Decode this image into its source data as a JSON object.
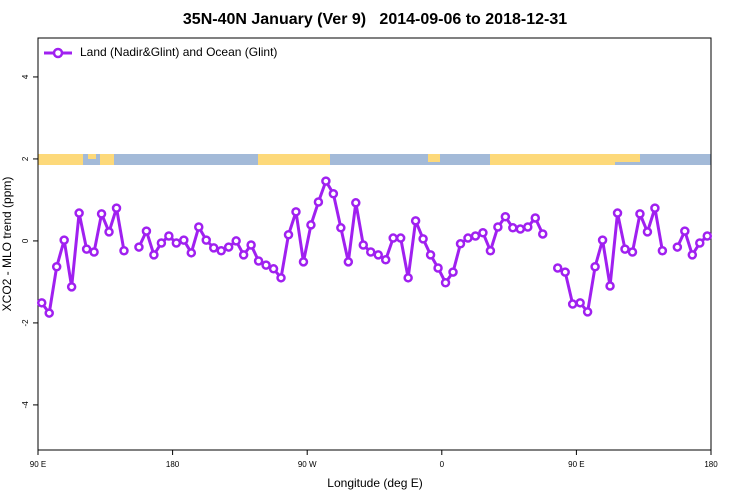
{
  "chart_data": {
    "type": "line",
    "title": "35N-40N January (Ver 9)   2014-09-06 to 2018-12-31",
    "x_label": "Longitude (deg E)",
    "y_label": "XCO2 - MLO trend (ppm)",
    "x": [
      92.5,
      97.5,
      102.5,
      107.5,
      112.5,
      117.5,
      122.5,
      127.5,
      132.5,
      137.5,
      142.5,
      147.5,
      152.5,
      157.5,
      162.5,
      167.5,
      172.5,
      177.5,
      182.5,
      187.5,
      192.5,
      197.5,
      202.5,
      207.5,
      212.5,
      217.5,
      222.5,
      227.5,
      232.5,
      237.5,
      242.5,
      247.5,
      252.5,
      257.5,
      262.5,
      267.5,
      272.5,
      277.5,
      282.5,
      287.5,
      292.5,
      297.5,
      302.5,
      307.5,
      312.5,
      317.5,
      322.5,
      327.5,
      332.5,
      337.5,
      342.5,
      347.5,
      352.5,
      357.5,
      362.5,
      367.5,
      372.5,
      377.5,
      382.5,
      387.5,
      392.5,
      397.5,
      402.5,
      407.5,
      412.5,
      417.5,
      422.5,
      427.5,
      432.5,
      437.5,
      442.5,
      447.5,
      452.5,
      457.5,
      462.5,
      467.5,
      472.5,
      477.5,
      482.5,
      487.5,
      492.5,
      497.5,
      502.5,
      507.5,
      512.5,
      517.5,
      522.5,
      527.5,
      532.5,
      537.5
    ],
    "series": [
      {
        "name": "Land (Nadir&Glint) and Ocean (Glint)",
        "color": "#a020f0",
        "values": [
          -1.51,
          -1.76,
          -0.63,
          0.02,
          -1.12,
          0.68,
          -0.2,
          -0.27,
          0.66,
          0.22,
          0.8,
          -0.24,
          null,
          -0.15,
          0.24,
          -0.34,
          -0.05,
          0.12,
          -0.05,
          0.02,
          -0.29,
          0.34,
          0.02,
          -0.17,
          -0.24,
          -0.15,
          0,
          -0.34,
          -0.1,
          -0.49,
          -0.59,
          -0.68,
          -0.9,
          0.15,
          0.71,
          -0.51,
          0.39,
          0.95,
          1.46,
          1.15,
          0.32,
          -0.51,
          0.93,
          -0.1,
          -0.27,
          -0.34,
          -0.46,
          0.07,
          0.07,
          -0.9,
          0.49,
          0.05,
          -0.34,
          -0.66,
          -1.02,
          -0.76,
          -0.07,
          0.07,
          0.12,
          0.2,
          -0.24,
          0.34,
          0.59,
          0.32,
          0.29,
          0.34,
          0.56,
          0.17,
          null,
          -0.66,
          -0.76,
          -1.54,
          -1.51,
          -1.73,
          -0.63,
          0.02,
          -1.1,
          0.68,
          -0.2,
          -0.27,
          0.66,
          0.22,
          0.8,
          -0.24,
          null,
          -0.15,
          0.24,
          -0.34,
          -0.05,
          0.12
        ]
      }
    ],
    "xlim": [
      90,
      540
    ],
    "xticks": [
      {
        "value": 90,
        "label": "90 E"
      },
      180,
      {
        "value": 270,
        "label": "90 W"
      },
      {
        "value": 360,
        "label": "0"
      },
      {
        "value": 450,
        "label": "90 E"
      },
      {
        "value": 540,
        "label": "180"
      }
    ],
    "ylim": [
      -5.1,
      4.95
    ],
    "yticks": [
      -4,
      -2,
      0,
      2,
      4
    ],
    "legend": "top-left"
  }
}
